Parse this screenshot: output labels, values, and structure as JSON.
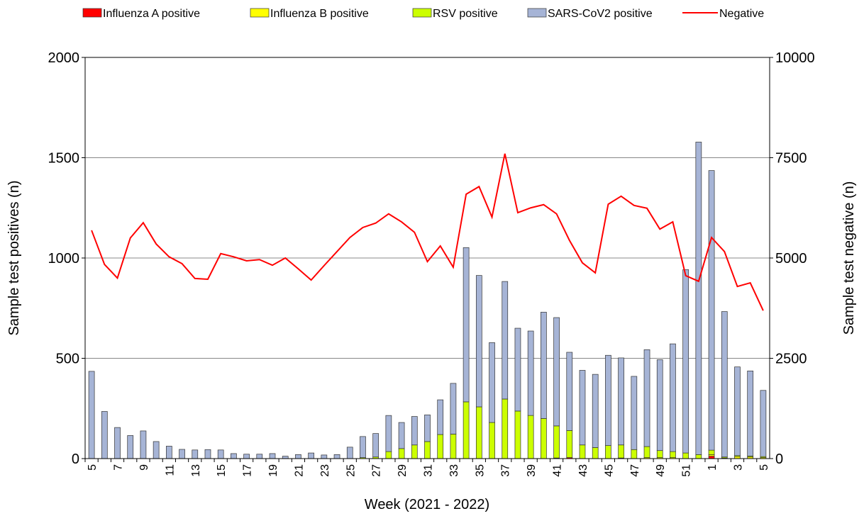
{
  "chart_data": {
    "type": "bar",
    "stacked": true,
    "x_label": "Week (2021 - 2022)",
    "y_label": "Sample test positives (n)",
    "y2_label": "Sample test negative (n)",
    "categories": [
      "5",
      null,
      "7",
      null,
      "9",
      null,
      "11",
      null,
      "13",
      null,
      "15",
      null,
      "17",
      null,
      "19",
      null,
      "21",
      null,
      "23",
      null,
      "25",
      null,
      "27",
      null,
      "29",
      null,
      "31",
      null,
      "33",
      null,
      "35",
      null,
      "37",
      null,
      "39",
      null,
      "41",
      null,
      "43",
      null,
      "45",
      null,
      "47",
      null,
      "49",
      null,
      "51",
      null,
      "1",
      null,
      "3",
      null,
      "5"
    ],
    "ylim": [
      0,
      2000
    ],
    "yticks": [
      0,
      500,
      1000,
      1500,
      2000
    ],
    "y2lim": [
      0,
      10000
    ],
    "y2ticks": [
      0,
      2500,
      5000,
      7500,
      10000
    ],
    "grid": true,
    "legend": "top",
    "series": [
      {
        "name": "Influenza A positive",
        "color": "#ff0000",
        "type": "bar",
        "values": [
          0,
          0,
          0,
          0,
          0,
          0,
          0,
          0,
          0,
          0,
          0,
          0,
          0,
          0,
          0,
          0,
          0,
          0,
          0,
          0,
          0,
          0,
          0,
          0,
          0,
          0,
          0,
          0,
          0,
          0,
          0,
          0,
          0,
          0,
          0,
          0,
          3,
          5,
          0,
          0,
          0,
          3,
          0,
          0,
          0,
          0,
          0,
          0,
          12,
          3,
          0,
          0,
          0
        ]
      },
      {
        "name": "Influenza B positive",
        "color": "#ffff00",
        "type": "bar",
        "values": [
          0,
          0,
          0,
          0,
          0,
          0,
          0,
          0,
          0,
          0,
          0,
          0,
          0,
          0,
          0,
          0,
          0,
          0,
          0,
          0,
          0,
          0,
          0,
          0,
          0,
          0,
          0,
          0,
          0,
          0,
          0,
          0,
          0,
          0,
          0,
          0,
          0,
          0,
          0,
          0,
          0,
          0,
          0,
          5,
          5,
          5,
          0,
          0,
          8,
          0,
          10,
          8,
          5
        ]
      },
      {
        "name": "RSV positive",
        "color": "#ccff00",
        "type": "bar",
        "values": [
          0,
          0,
          0,
          0,
          0,
          0,
          0,
          0,
          0,
          0,
          0,
          0,
          0,
          0,
          0,
          0,
          0,
          0,
          0,
          0,
          0,
          5,
          8,
          35,
          50,
          68,
          85,
          120,
          122,
          283,
          258,
          180,
          297,
          237,
          215,
          200,
          160,
          135,
          68,
          55,
          65,
          65,
          45,
          55,
          35,
          30,
          28,
          20,
          22,
          5,
          5,
          5,
          5
        ]
      },
      {
        "name": "SARS-CoV2 positive",
        "color": "#a6b4d6",
        "type": "bar",
        "values": [
          435,
          235,
          155,
          115,
          138,
          85,
          62,
          46,
          43,
          45,
          43,
          25,
          22,
          22,
          25,
          12,
          20,
          28,
          18,
          20,
          57,
          105,
          117,
          180,
          130,
          142,
          133,
          173,
          253,
          769,
          655,
          398,
          586,
          413,
          421,
          530,
          540,
          390,
          372,
          365,
          450,
          434,
          365,
          483,
          453,
          537,
          914,
          1558,
          1394,
          725,
          442,
          424,
          330
        ]
      },
      {
        "name": "Negative",
        "color": "#ff0000",
        "type": "line",
        "axis": "y2",
        "values": [
          5690,
          4840,
          4500,
          5500,
          5880,
          5350,
          5030,
          4860,
          4490,
          4470,
          5110,
          5030,
          4930,
          4960,
          4820,
          5000,
          4730,
          4450,
          4810,
          5160,
          5510,
          5760,
          5870,
          6100,
          5900,
          5640,
          4910,
          5300,
          4770,
          6590,
          6780,
          6020,
          7600,
          6130,
          6250,
          6330,
          6100,
          5440,
          4880,
          4630,
          6340,
          6540,
          6310,
          6240,
          5720,
          5900,
          4560,
          4420,
          5510,
          5160,
          4290,
          4380,
          3690
        ]
      }
    ]
  }
}
